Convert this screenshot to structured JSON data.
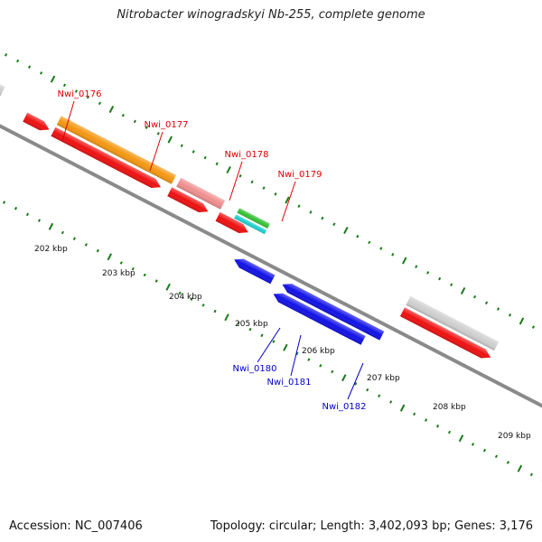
{
  "title": "Nitrobacter winogradskyi Nb-255, complete genome",
  "footer": {
    "accession": "Accession: NC_007406",
    "summary": "Topology: circular; Length: 3,402,093 bp; Genes: 3,176"
  },
  "colors": {
    "backbone": "#8a8a8a",
    "tick": "#1a7a1a",
    "plus_label": "#dd0000",
    "minus_label": "#0000cc",
    "red": "#ee1111",
    "orange": "#f49712",
    "pink": "#ef8f8f",
    "blue": "#1212e6",
    "gray": "#cfcfcf",
    "green": "#36c236",
    "cyan": "#20cfcf"
  },
  "kbp_labels": [
    {
      "text": "202 kbp",
      "kbp": 202
    },
    {
      "text": "203 kbp",
      "kbp": 203
    },
    {
      "text": "204 kbp",
      "kbp": 204
    },
    {
      "text": "205 kbp",
      "kbp": 205
    },
    {
      "text": "206 kbp",
      "kbp": 206
    },
    {
      "text": "207 kbp",
      "kbp": 207
    },
    {
      "text": "208 kbp",
      "kbp": 208
    },
    {
      "text": "209 kbp",
      "kbp": 209
    }
  ],
  "gene_labels": [
    {
      "text": "Nwi_0176",
      "strand": "plus"
    },
    {
      "text": "Nwi_0177",
      "strand": "plus"
    },
    {
      "text": "Nwi_0178",
      "strand": "plus"
    },
    {
      "text": "Nwi_0179",
      "strand": "plus"
    },
    {
      "text": "Nwi_0180",
      "strand": "minus"
    },
    {
      "text": "Nwi_0181",
      "strand": "minus"
    },
    {
      "text": "Nwi_0182",
      "strand": "minus"
    }
  ]
}
